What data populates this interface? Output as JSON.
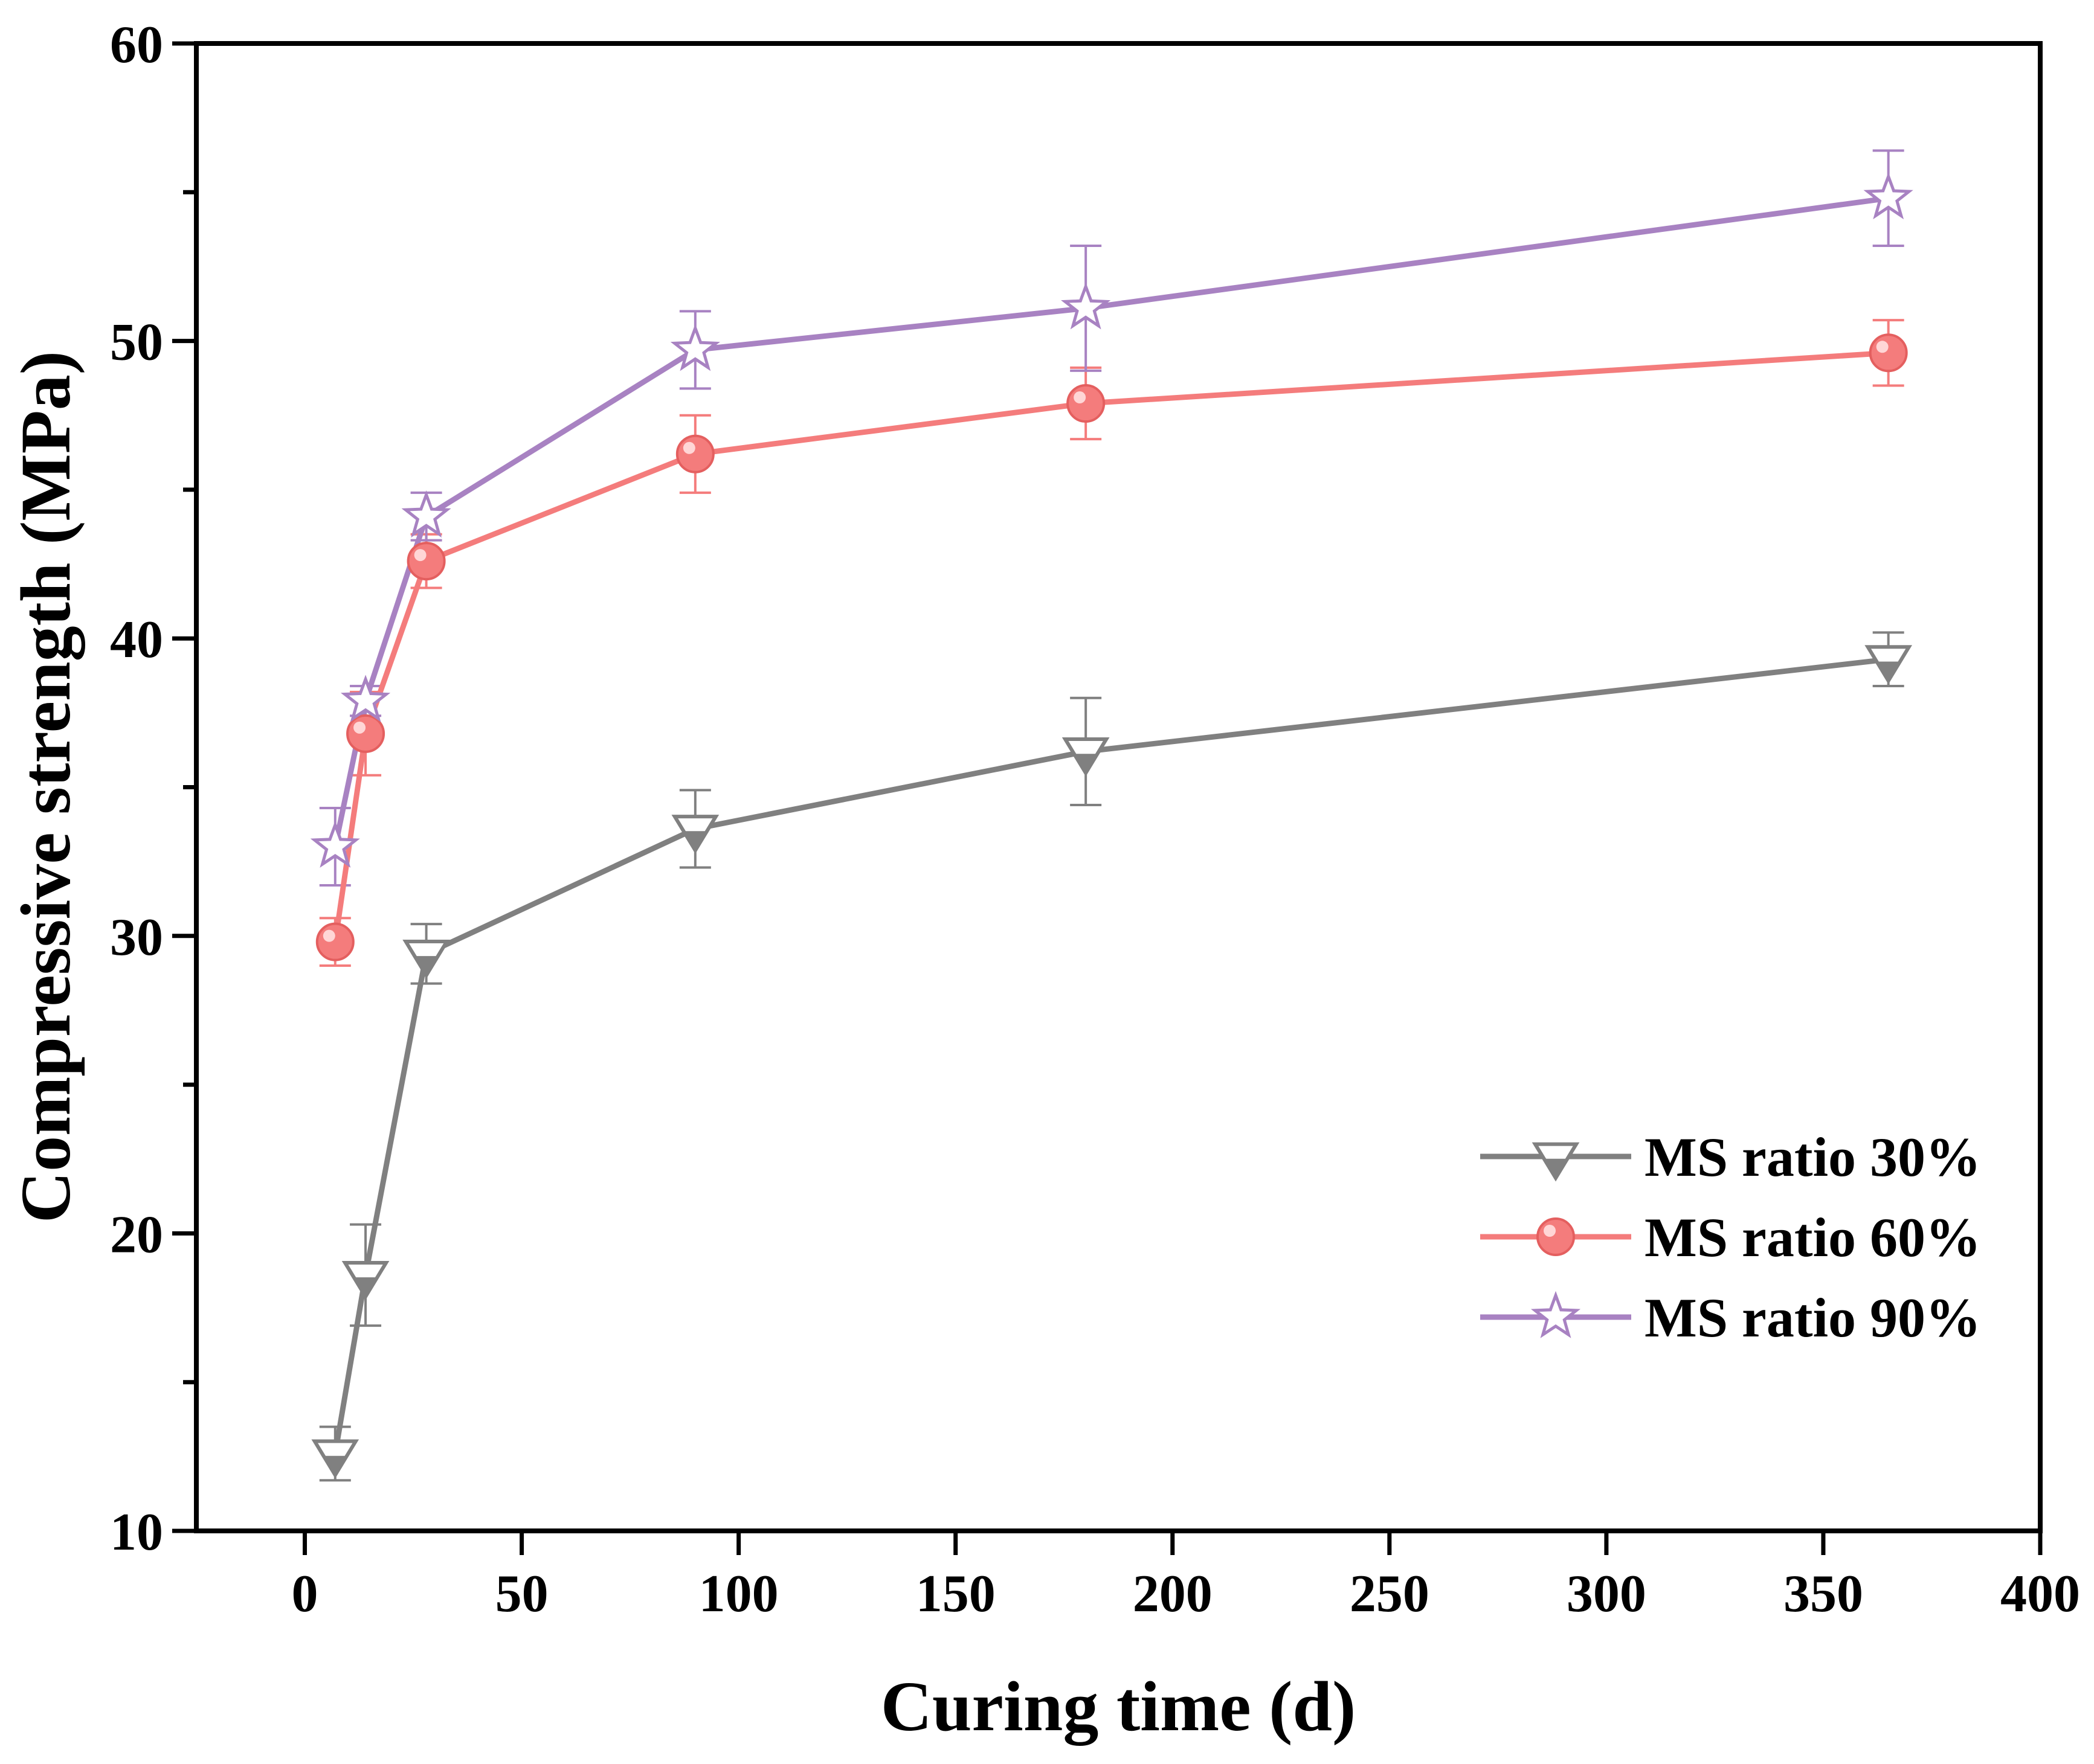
{
  "chart_data": {
    "type": "line",
    "title": "",
    "xlabel": "Curing time (d)",
    "ylabel": "Compressive strength (MPa)",
    "xlim": [
      -25,
      400
    ],
    "ylim": [
      10,
      60
    ],
    "x_ticks": [
      0,
      50,
      100,
      150,
      200,
      250,
      300,
      350,
      400
    ],
    "x_tick_labels": [
      "0",
      "50",
      "100",
      "150",
      "200",
      "250",
      "300",
      "350",
      "400"
    ],
    "y_ticks": [
      10,
      20,
      30,
      40,
      50,
      60
    ],
    "y_tick_labels": [
      "10",
      "20",
      "30",
      "40",
      "50",
      "60"
    ],
    "y_minor_ticks": [
      15,
      25,
      35,
      45,
      55
    ],
    "grid": false,
    "legend_position": "bottom-right",
    "x": [
      7,
      14,
      28,
      90,
      180,
      365
    ],
    "series": [
      {
        "name": "MS ratio 30%",
        "color": "#808080",
        "marker": "triangle-down",
        "values": [
          12.6,
          18.6,
          29.4,
          33.6,
          36.2,
          39.3
        ],
        "errors": [
          0.9,
          1.7,
          1.0,
          1.3,
          1.8,
          0.9
        ]
      },
      {
        "name": "MS ratio 60%",
        "color": "#f47c7c",
        "marker": "circle",
        "values": [
          29.8,
          36.8,
          42.6,
          46.2,
          47.9,
          49.6
        ],
        "errors": [
          0.8,
          1.4,
          0.9,
          1.3,
          1.2,
          1.1
        ]
      },
      {
        "name": "MS ratio 90%",
        "color": "#a882c2",
        "marker": "star",
        "values": [
          33.0,
          37.9,
          44.1,
          49.7,
          51.1,
          54.8
        ],
        "errors": [
          1.3,
          0.5,
          0.8,
          1.3,
          2.1,
          1.6
        ]
      }
    ]
  }
}
